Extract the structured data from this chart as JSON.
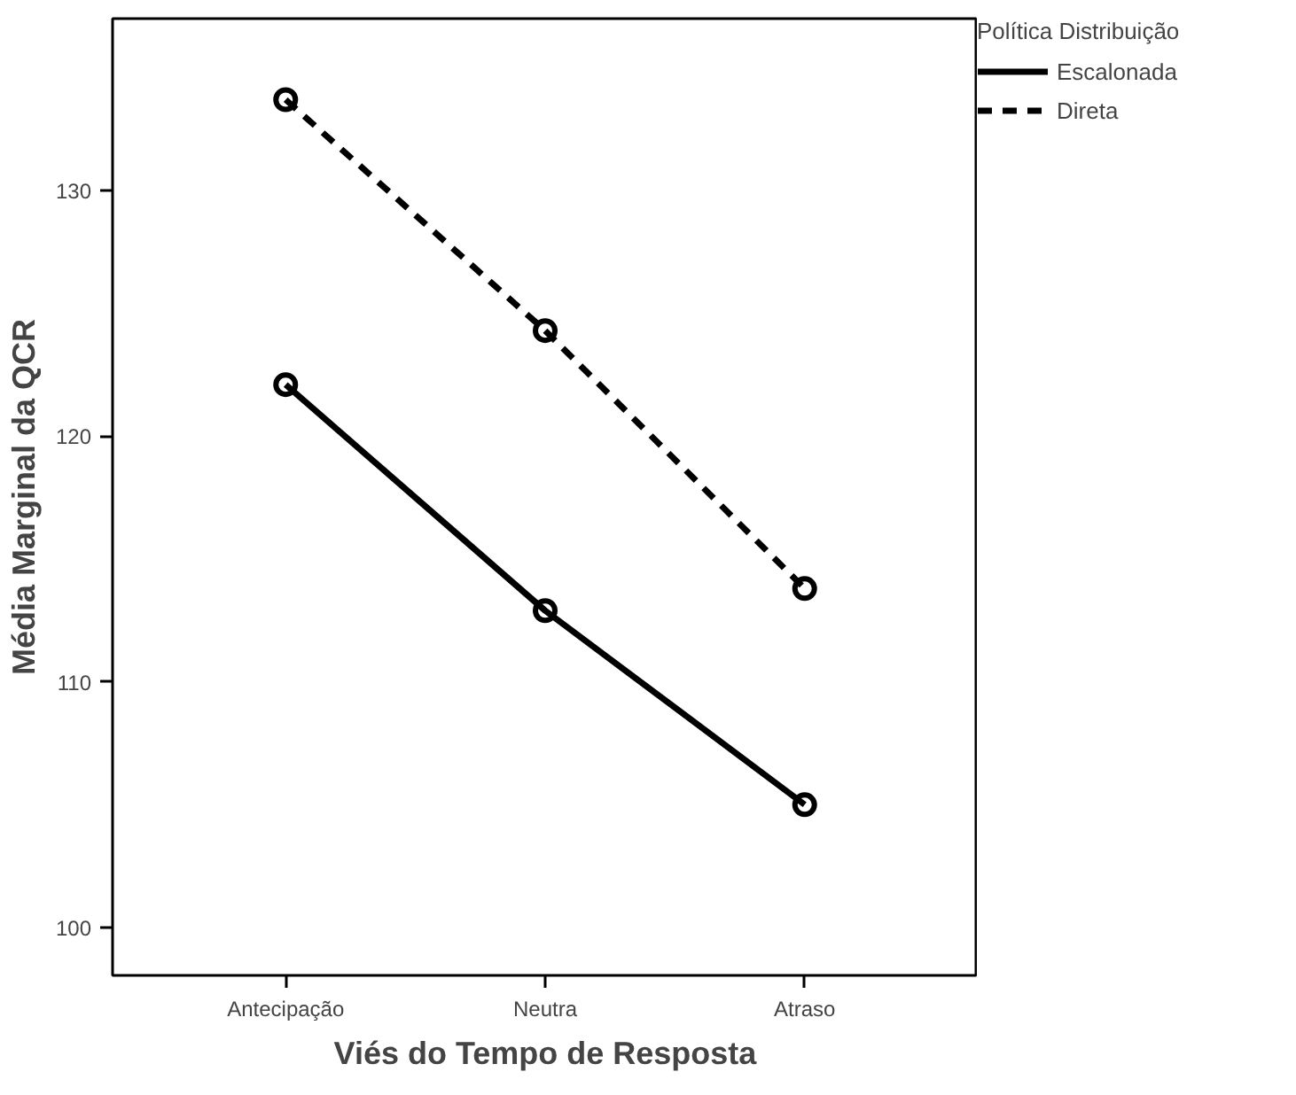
{
  "chart_data": {
    "type": "line",
    "xlabel": "Viés do Tempo de Resposta",
    "ylabel": "Média Marginal da QCR",
    "legend_title": "Política Distribuição",
    "categories": [
      "Antecipação",
      "Neutra",
      "Atraso"
    ],
    "series": [
      {
        "name": "Escalonada",
        "color": "#000000",
        "values": [
          122.1,
          112.9,
          105.0
        ],
        "line_style": "solid"
      },
      {
        "name": "Direta",
        "color": "#000000",
        "values": [
          133.7,
          124.3,
          113.8
        ],
        "line_style": "dashed"
      }
    ],
    "ylim": [
      98.05,
      137.0
    ],
    "yticks": [
      100,
      110,
      120,
      130
    ],
    "marker": "circle",
    "grid": false,
    "legend": "top right"
  }
}
